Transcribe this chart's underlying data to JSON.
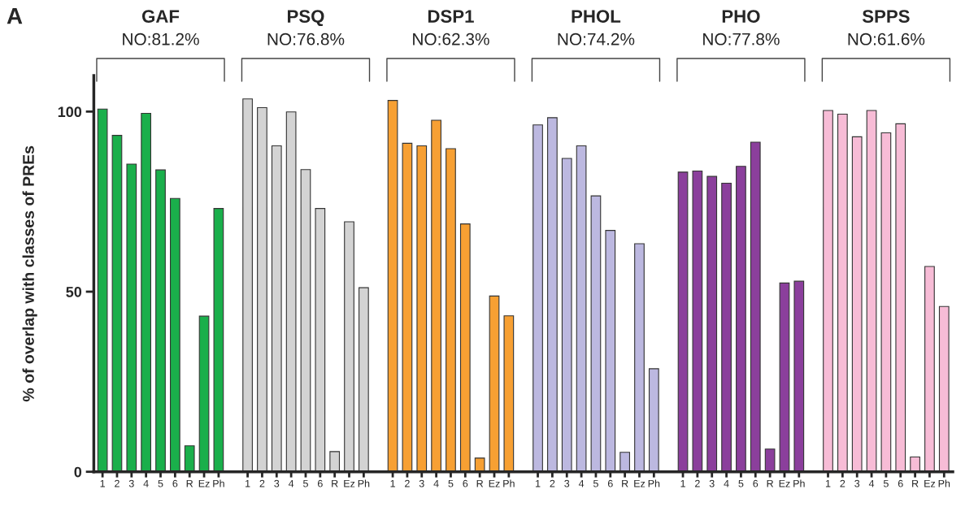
{
  "chart_data": {
    "type": "bar",
    "ylabel": "% of overlap with classes of PREs",
    "annotations": [
      "A",
      "GAF",
      "NO:81.2%",
      "PSQ",
      "NO:76.8%",
      "DSP1",
      "NO:62.3%",
      "PHOL",
      "NO:74.2%",
      "PHO",
      "NO:77.8%",
      "SPPS",
      "NO:61.6%"
    ],
    "categories": [
      "1",
      "2",
      "3",
      "4",
      "5",
      "6",
      "R",
      "Ez",
      "Ph",
      null,
      "1",
      "2",
      "3",
      "4",
      "5",
      "6",
      "R",
      "Ez",
      "Ph",
      null,
      "1",
      "2",
      "3",
      "4",
      "5",
      "6",
      "R",
      "Ez",
      "Ph",
      null,
      "1",
      "2",
      "3",
      "4",
      "5",
      "6",
      "R",
      "Ez",
      "Ph",
      null,
      "1",
      "2",
      "3",
      "4",
      "5",
      "6",
      "R",
      "Ez",
      "Ph",
      null,
      "1",
      "2",
      "3",
      "4",
      "5",
      "6",
      "R",
      "Ez",
      "Ph"
    ],
    "series": [
      {
        "color": "#1aaf4b",
        "values": [
          100.7,
          93.4,
          85.4,
          99.5,
          83.8,
          75.9,
          7.2,
          43.2,
          73.1,
          null,
          null,
          null,
          null,
          null,
          null,
          null,
          null,
          null,
          null,
          null,
          null,
          null,
          null,
          null,
          null,
          null,
          null,
          null,
          null,
          null,
          null,
          null,
          null,
          null,
          null,
          null,
          null,
          null,
          null,
          null,
          null,
          null,
          null,
          null,
          null,
          null,
          null,
          null,
          null,
          null,
          null,
          null,
          null,
          null,
          null,
          null,
          null,
          null,
          null
        ]
      },
      {
        "color": "#d3d3d3",
        "values": [
          null,
          null,
          null,
          null,
          null,
          null,
          null,
          null,
          null,
          null,
          103.5,
          101.1,
          90.5,
          99.9,
          83.9,
          73.1,
          5.6,
          69.4,
          51.1,
          null,
          null,
          null,
          null,
          null,
          null,
          null,
          null,
          null,
          null,
          null,
          null,
          null,
          null,
          null,
          null,
          null,
          null,
          null,
          null,
          null,
          null,
          null,
          null,
          null,
          null,
          null,
          null,
          null,
          null,
          null,
          null,
          null,
          null,
          null,
          null,
          null,
          null,
          null,
          null
        ]
      },
      {
        "color": "#f7a033",
        "values": [
          null,
          null,
          null,
          null,
          null,
          null,
          null,
          null,
          null,
          null,
          null,
          null,
          null,
          null,
          null,
          null,
          null,
          null,
          null,
          null,
          103.1,
          91.2,
          90.5,
          97.6,
          89.7,
          68.8,
          3.8,
          48.8,
          43.3,
          null,
          null,
          null,
          null,
          null,
          null,
          null,
          null,
          null,
          null,
          null,
          null,
          null,
          null,
          null,
          null,
          null,
          null,
          null,
          null,
          null,
          null,
          null,
          null,
          null,
          null,
          null,
          null,
          null,
          null
        ]
      },
      {
        "color": "#bcb8e0",
        "values": [
          null,
          null,
          null,
          null,
          null,
          null,
          null,
          null,
          null,
          null,
          null,
          null,
          null,
          null,
          null,
          null,
          null,
          null,
          null,
          null,
          null,
          null,
          null,
          null,
          null,
          null,
          null,
          null,
          null,
          null,
          96.3,
          98.3,
          87.0,
          90.5,
          76.6,
          67.0,
          5.4,
          63.3,
          28.6,
          null,
          null,
          null,
          null,
          null,
          null,
          null,
          null,
          null,
          null,
          null,
          null,
          null,
          null,
          null,
          null,
          null,
          null,
          null,
          null
        ]
      },
      {
        "color": "#8b3f9c",
        "values": [
          null,
          null,
          null,
          null,
          null,
          null,
          null,
          null,
          null,
          null,
          null,
          null,
          null,
          null,
          null,
          null,
          null,
          null,
          null,
          null,
          null,
          null,
          null,
          null,
          null,
          null,
          null,
          null,
          null,
          null,
          null,
          null,
          null,
          null,
          null,
          null,
          null,
          null,
          null,
          null,
          83.2,
          83.5,
          82.0,
          80.1,
          84.8,
          91.5,
          6.3,
          52.4,
          52.9,
          null,
          null,
          null,
          null,
          null,
          null,
          null,
          null,
          null,
          null
        ]
      },
      {
        "color": "#f7bcd6",
        "values": [
          null,
          null,
          null,
          null,
          null,
          null,
          null,
          null,
          null,
          null,
          null,
          null,
          null,
          null,
          null,
          null,
          null,
          null,
          null,
          null,
          null,
          null,
          null,
          null,
          null,
          null,
          null,
          null,
          null,
          null,
          null,
          null,
          null,
          null,
          null,
          null,
          null,
          null,
          null,
          null,
          null,
          null,
          null,
          null,
          null,
          null,
          null,
          null,
          null,
          null,
          100.3,
          99.3,
          93.0,
          100.3,
          94.1,
          96.6,
          4.1,
          57.0,
          45.9
        ]
      }
    ],
    "ylim": [
      0,
      110
    ],
    "yticks": [
      0,
      50,
      100
    ],
    "grid": false,
    "legend": false
  }
}
